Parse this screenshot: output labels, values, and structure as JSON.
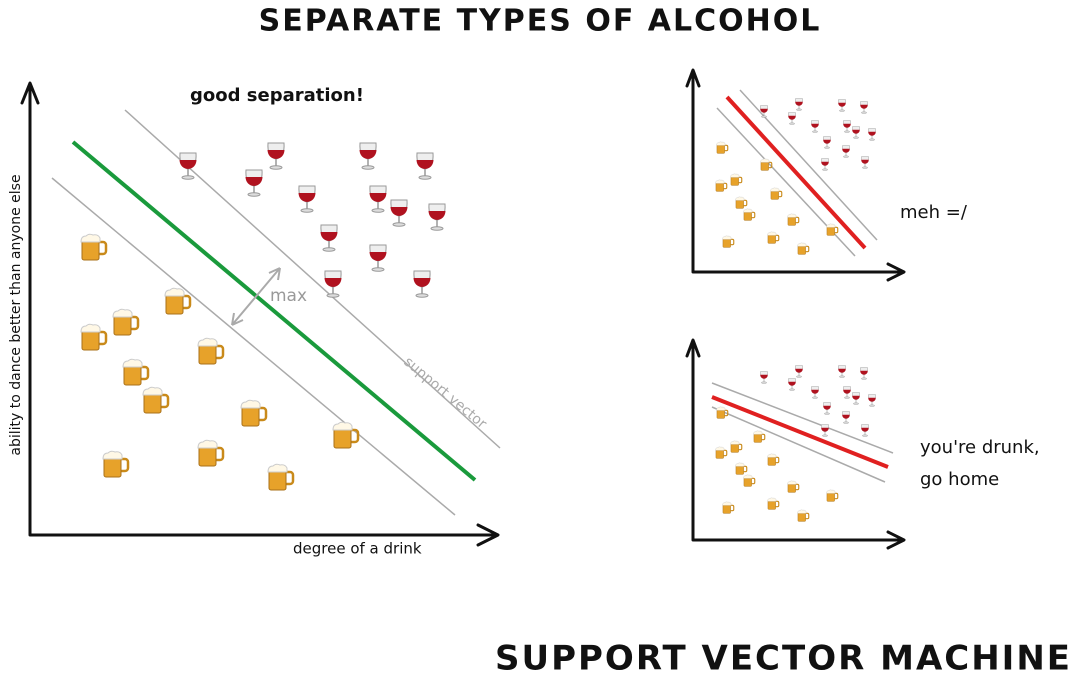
{
  "title": "SEPARATE TYPES OF ALCOHOL",
  "footer": "SUPPORT VECTOR MACHINE",
  "main_panel": {
    "caption": "good separation!",
    "margin_label": "max",
    "support_vector_label": "support vector",
    "y_axis_label": "ability to dance better than anyone else",
    "x_axis_label": "degree of a drink"
  },
  "panels": [
    {
      "caption": [
        "meh =/"
      ]
    },
    {
      "caption": [
        "you're drunk,",
        "go home"
      ]
    }
  ]
}
